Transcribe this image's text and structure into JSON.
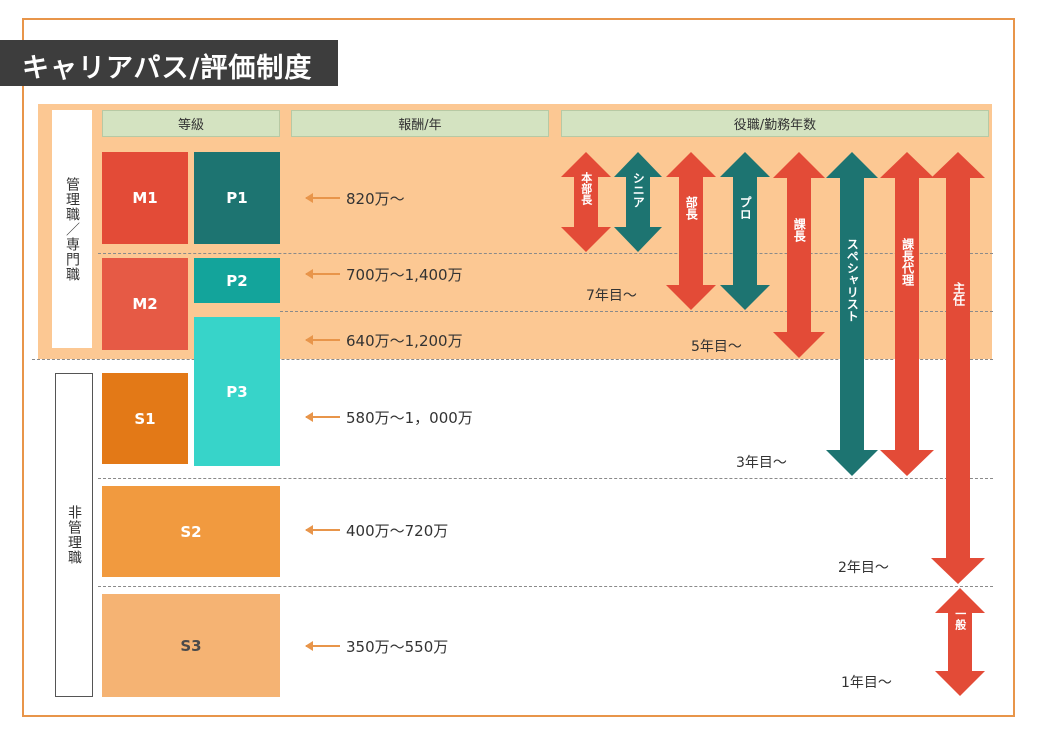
{
  "title": "キャリアパス/評価制度",
  "headers": {
    "grade": "等級",
    "pay": "報酬/年",
    "role": "役職/勤務年数"
  },
  "groups": {
    "management": "管理職／専門職",
    "non_management": "非管理職"
  },
  "grades": {
    "m1": "M1",
    "p1": "P1",
    "m2": "M2",
    "p2": "P2",
    "p3": "P3",
    "s1": "S1",
    "s2": "S2",
    "s3": "S3"
  },
  "pay": [
    "820万〜",
    "700万〜1,400万",
    "640万〜1,200万",
    "580万〜1，000万",
    "400万〜720万",
    "350万〜550万"
  ],
  "years": [
    "7年目〜",
    "5年目〜",
    "3年目〜",
    "2年目〜",
    "1年目〜"
  ],
  "roles": {
    "honbucho": "本部長",
    "senior": "シニア",
    "bucho": "部長",
    "pro": "プロ",
    "kacho": "課長",
    "specialist": "スペシャリスト",
    "kacho_dairi": "課長代理",
    "shunin": "主任",
    "ippan": "一般"
  },
  "colors": {
    "frame": "#e8954a",
    "mgmt_band": "#fcc893",
    "header_fill": "#d4e3c1",
    "red": "#e34b37",
    "teal": "#1d7471",
    "m2": "#e65a45",
    "p2": "#13a49b",
    "p3": "#37d4c9",
    "s1": "#e37917",
    "s2": "#f19a3f",
    "s3": "#f5b373"
  }
}
